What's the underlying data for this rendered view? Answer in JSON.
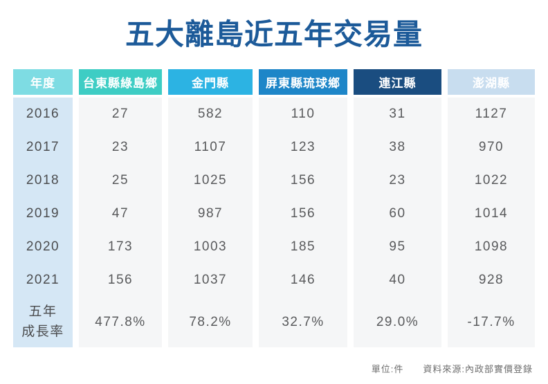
{
  "title": "五大離島近五年交易量",
  "table": {
    "columns": [
      {
        "label": "年度",
        "color": "#7edce3"
      },
      {
        "label": "台東縣綠島鄉",
        "color": "#3ecdc4"
      },
      {
        "label": "金門縣",
        "color": "#2cb3e3"
      },
      {
        "label": "屏東縣琉球鄉",
        "color": "#1e86c8"
      },
      {
        "label": "連江縣",
        "color": "#1a4d80"
      },
      {
        "label": "澎湖縣",
        "color": "#c8ddef"
      }
    ],
    "rows": [
      {
        "year": "2016",
        "values": [
          "27",
          "582",
          "110",
          "31",
          "1127"
        ]
      },
      {
        "year": "2017",
        "values": [
          "23",
          "1107",
          "123",
          "38",
          "970"
        ]
      },
      {
        "year": "2018",
        "values": [
          "25",
          "1025",
          "156",
          "23",
          "1022"
        ]
      },
      {
        "year": "2019",
        "values": [
          "47",
          "987",
          "156",
          "60",
          "1014"
        ]
      },
      {
        "year": "2020",
        "values": [
          "173",
          "1003",
          "185",
          "95",
          "1098"
        ]
      },
      {
        "year": "2021",
        "values": [
          "156",
          "1037",
          "146",
          "40",
          "928"
        ]
      },
      {
        "year": "五年\n成長率",
        "values": [
          "477.8%",
          "78.2%",
          "32.7%",
          "29.0%",
          "-17.7%"
        ]
      }
    ]
  },
  "footer": {
    "unit": "單位:件",
    "source": "資料來源:內政部實價登錄"
  },
  "colors": {
    "title": "#1c5a99",
    "year_column_bg": "#d5e7f5",
    "data_cell_bg": "#f5f6f7"
  },
  "chart_data": {
    "type": "table",
    "title": "五大離島近五年交易量",
    "categories": [
      "2016",
      "2017",
      "2018",
      "2019",
      "2020",
      "2021"
    ],
    "series": [
      {
        "name": "台東縣綠島鄉",
        "values": [
          27,
          23,
          25,
          47,
          173,
          156
        ],
        "five_year_growth": "477.8%"
      },
      {
        "name": "金門縣",
        "values": [
          582,
          1107,
          1025,
          987,
          1003,
          1037
        ],
        "five_year_growth": "78.2%"
      },
      {
        "name": "屏東縣琉球鄉",
        "values": [
          110,
          123,
          156,
          156,
          185,
          146
        ],
        "five_year_growth": "32.7%"
      },
      {
        "name": "連江縣",
        "values": [
          31,
          38,
          23,
          60,
          95,
          40
        ],
        "five_year_growth": "29.0%"
      },
      {
        "name": "澎湖縣",
        "values": [
          1127,
          970,
          1022,
          1014,
          1098,
          928
        ],
        "five_year_growth": "-17.7%"
      }
    ],
    "row_header_label": "年度",
    "growth_row_label": "五年成長率",
    "unit_note": "單位:件",
    "source_note": "資料來源:內政部實價登錄"
  }
}
